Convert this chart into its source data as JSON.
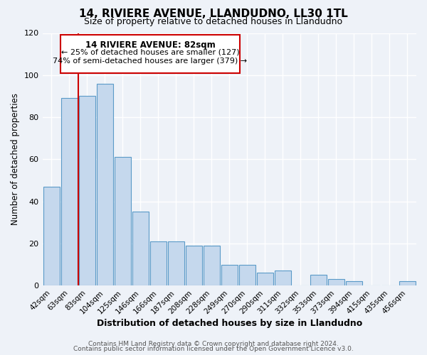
{
  "title": "14, RIVIERE AVENUE, LLANDUDNO, LL30 1TL",
  "subtitle": "Size of property relative to detached houses in Llandudno",
  "xlabel": "Distribution of detached houses by size in Llandudno",
  "ylabel": "Number of detached properties",
  "bar_labels": [
    "42sqm",
    "63sqm",
    "83sqm",
    "104sqm",
    "125sqm",
    "146sqm",
    "166sqm",
    "187sqm",
    "208sqm",
    "228sqm",
    "249sqm",
    "270sqm",
    "290sqm",
    "311sqm",
    "332sqm",
    "353sqm",
    "373sqm",
    "394sqm",
    "415sqm",
    "435sqm",
    "456sqm"
  ],
  "bar_values": [
    47,
    89,
    90,
    96,
    61,
    35,
    21,
    21,
    19,
    19,
    10,
    10,
    6,
    7,
    0,
    5,
    3,
    2,
    0,
    0,
    2
  ],
  "bar_color": "#c5d8ed",
  "bar_edge_color": "#5a9ac8",
  "highlight_line_color": "#cc0000",
  "annotation_title": "14 RIVIERE AVENUE: 82sqm",
  "annotation_line1": "← 25% of detached houses are smaller (127)",
  "annotation_line2": "74% of semi-detached houses are larger (379) →",
  "annotation_box_color": "#cc0000",
  "ylim": [
    0,
    120
  ],
  "yticks": [
    0,
    20,
    40,
    60,
    80,
    100,
    120
  ],
  "background_color": "#eef2f8",
  "grid_color": "#ffffff",
  "footer_line1": "Contains HM Land Registry data © Crown copyright and database right 2024.",
  "footer_line2": "Contains public sector information licensed under the Open Government Licence v3.0."
}
